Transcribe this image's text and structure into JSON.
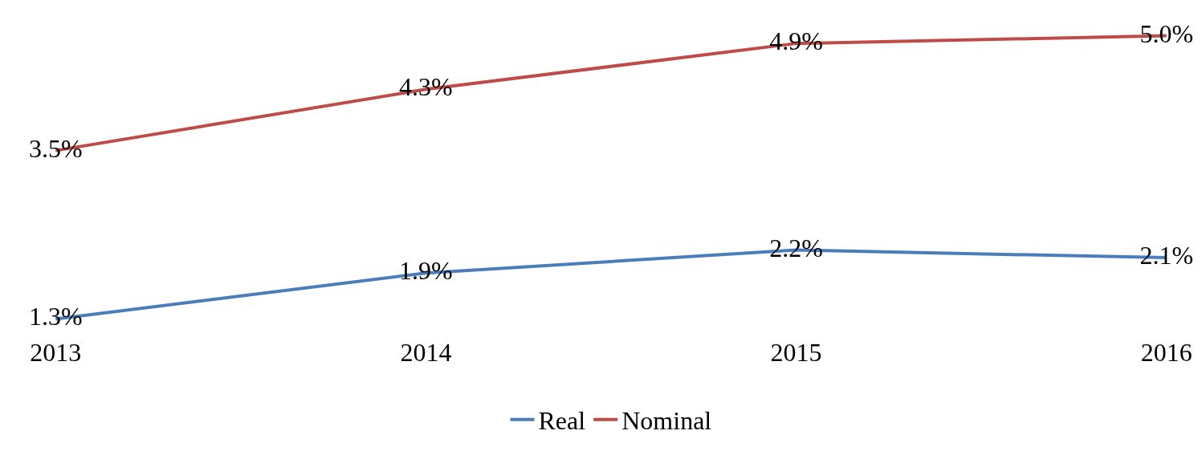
{
  "chart_data": {
    "type": "line",
    "categories": [
      "2013",
      "2014",
      "2015",
      "2016"
    ],
    "series": [
      {
        "name": "Real",
        "color": "#4a7ebb",
        "values": [
          1.3,
          1.9,
          2.2,
          2.1
        ],
        "value_labels": [
          "1.3%",
          "1.9%",
          "2.2%",
          "2.1%"
        ]
      },
      {
        "name": "Nominal",
        "color": "#be4b48",
        "values": [
          3.5,
          4.3,
          4.9,
          5.0
        ],
        "value_labels": [
          "3.5%",
          "4.3%",
          "4.9%",
          "5.0%"
        ]
      }
    ],
    "legend": "bottom",
    "line_style": "solid"
  }
}
